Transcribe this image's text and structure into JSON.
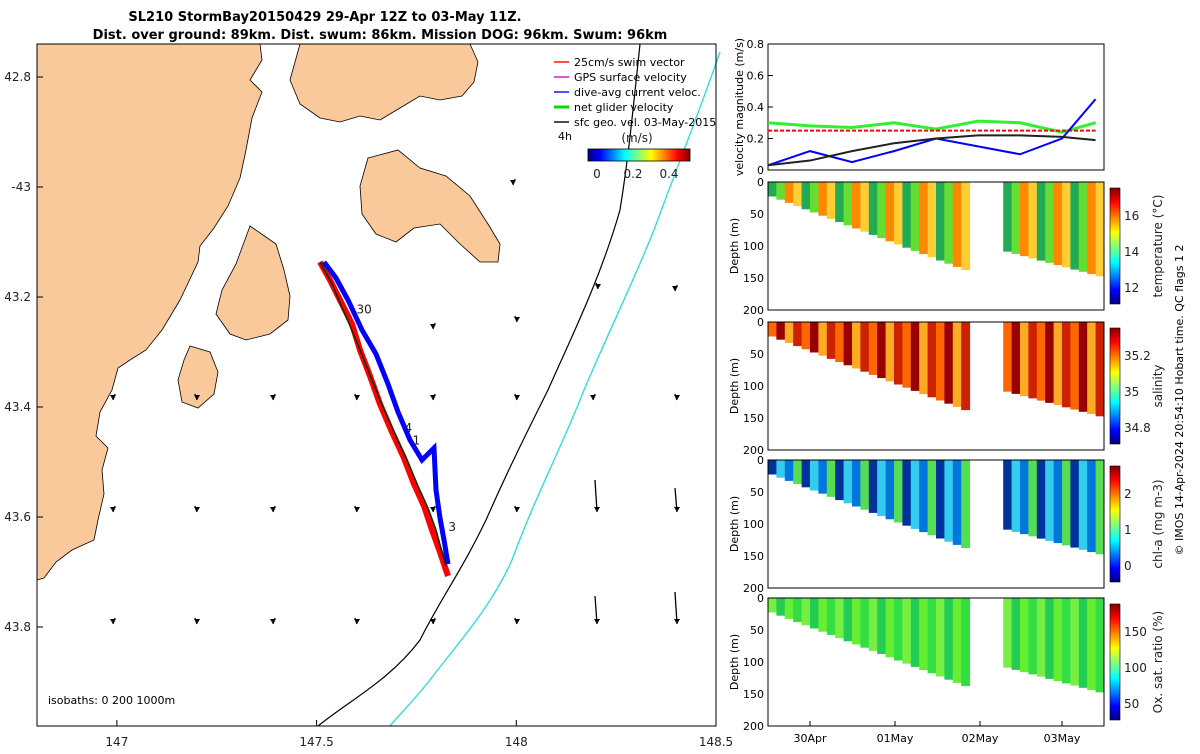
{
  "title": {
    "line1": "SL210 StormBay20150429 29-Apr 12Z to 03-May 11Z.",
    "line2": "Dist. over ground: 89km. Dist. swum: 86km. Mission DOG: 96km. Swum: 96km"
  },
  "map": {
    "xticks": [
      {
        "value": 147,
        "label": "147"
      },
      {
        "value": 147.5,
        "label": "147.5"
      },
      {
        "value": 148,
        "label": "148"
      },
      {
        "value": 148.5,
        "label": "148.5"
      }
    ],
    "yticks": [
      {
        "value": -42.8,
        "label": "42.8"
      },
      {
        "value": -43,
        "label": "-43"
      },
      {
        "value": -43.2,
        "label": "43.2"
      },
      {
        "value": -43.4,
        "label": "43.4"
      },
      {
        "value": -43.6,
        "label": "43.6"
      },
      {
        "value": -43.8,
        "label": "43.8"
      }
    ],
    "xlim": [
      146.8,
      148.5
    ],
    "ylim": [
      -43.98,
      -42.74
    ],
    "isobath_label": "isobaths: 0   200  1000m",
    "track_labels": [
      {
        "text": "30",
        "lon": 147.6,
        "lat": -43.23
      },
      {
        "text": "4",
        "lon": 147.72,
        "lat": -43.445
      },
      {
        "text": "1",
        "lon": 147.74,
        "lat": -43.468
      },
      {
        "text": "3",
        "lon": 147.83,
        "lat": -43.625
      }
    ],
    "legend": [
      {
        "label": "25cm/s swim vector",
        "color": "#ff0000"
      },
      {
        "label": "GPS surface velocity",
        "color": "#e000e0"
      },
      {
        "label": "dive-avg current veloc.",
        "color": "#0000ff"
      },
      {
        "label": "net glider velocity",
        "color": "#00dd00"
      },
      {
        "label": "sfc geo. vel. 03-May-2015",
        "color": "#000000"
      }
    ],
    "colorbar": {
      "title": "(m/s)",
      "interval": "4h",
      "ticks": [
        "0",
        "0.2",
        "0.4"
      ]
    },
    "colors": {
      "land": "#f9c89b",
      "sea": "#ffffff",
      "isobath200": "#000000",
      "isobath1000": "#33dddd"
    }
  },
  "chart_data": [
    {
      "type": "line",
      "title": "velocity magnitude",
      "ylabel": "velocity magnitude (m/s)",
      "ylim": [
        0,
        0.8
      ],
      "yticks": [
        "0",
        "0.2",
        "0.4",
        "0.6",
        "0.8"
      ],
      "x_days": [
        0,
        0.5,
        1.0,
        1.5,
        2.0,
        2.5,
        3.0,
        3.5,
        3.9
      ],
      "series": [
        {
          "name": "net glider velocity",
          "color": "#33ee33",
          "values": [
            0.3,
            0.28,
            0.27,
            0.3,
            0.26,
            0.31,
            0.3,
            0.24,
            0.3
          ]
        },
        {
          "name": "swim vector",
          "color": "#ff0000",
          "values": [
            0.25,
            0.25,
            0.25,
            0.25,
            0.25,
            0.25,
            0.25,
            0.25,
            0.25
          ]
        },
        {
          "name": "dive-avg current",
          "color": "#0000ff",
          "values": [
            0.03,
            0.12,
            0.05,
            0.12,
            0.2,
            0.15,
            0.1,
            0.2,
            0.45
          ]
        },
        {
          "name": "sfc geo. vel.",
          "color": "#222222",
          "values": [
            0.03,
            0.06,
            0.12,
            0.17,
            0.2,
            0.22,
            0.22,
            0.21,
            0.19
          ]
        }
      ]
    },
    {
      "type": "heatmap",
      "variable": "temperature",
      "ylabel": "Depth (m)",
      "cbar_label": "temperature (°C)",
      "cbar_ticks": [
        "12",
        "14",
        "16"
      ],
      "ylim": [
        0,
        200
      ],
      "yticks": [
        "0",
        "50",
        "100",
        "150",
        "200"
      ]
    },
    {
      "type": "heatmap",
      "variable": "salinity",
      "ylabel": "Depth (m)",
      "cbar_label": "salinity",
      "cbar_ticks": [
        "34.8",
        "35",
        "35.2"
      ],
      "ylim": [
        0,
        200
      ],
      "yticks": [
        "0",
        "50",
        "100",
        "150",
        "200"
      ]
    },
    {
      "type": "heatmap",
      "variable": "chl-a",
      "ylabel": "Depth (m)",
      "cbar_label": "chl-a (mg m-3)",
      "cbar_ticks": [
        "0",
        "1",
        "2"
      ],
      "ylim": [
        0,
        200
      ],
      "yticks": [
        "0",
        "50",
        "100",
        "150",
        "200"
      ]
    },
    {
      "type": "heatmap",
      "variable": "oxygen saturation",
      "ylabel": "Depth (m)",
      "cbar_label": "Ox. sat. ratio (%)",
      "cbar_ticks": [
        "50",
        "100",
        "150"
      ],
      "ylim": [
        0,
        200
      ],
      "yticks": [
        "0",
        "50",
        "100",
        "150",
        "200"
      ]
    }
  ],
  "time_axis": {
    "ticks": [
      "30Apr",
      "01May",
      "02May",
      "03May"
    ]
  },
  "side_label": "© IMOS 14-Apr-2024 20:54:10 Hobart time. QC flags 1  2"
}
